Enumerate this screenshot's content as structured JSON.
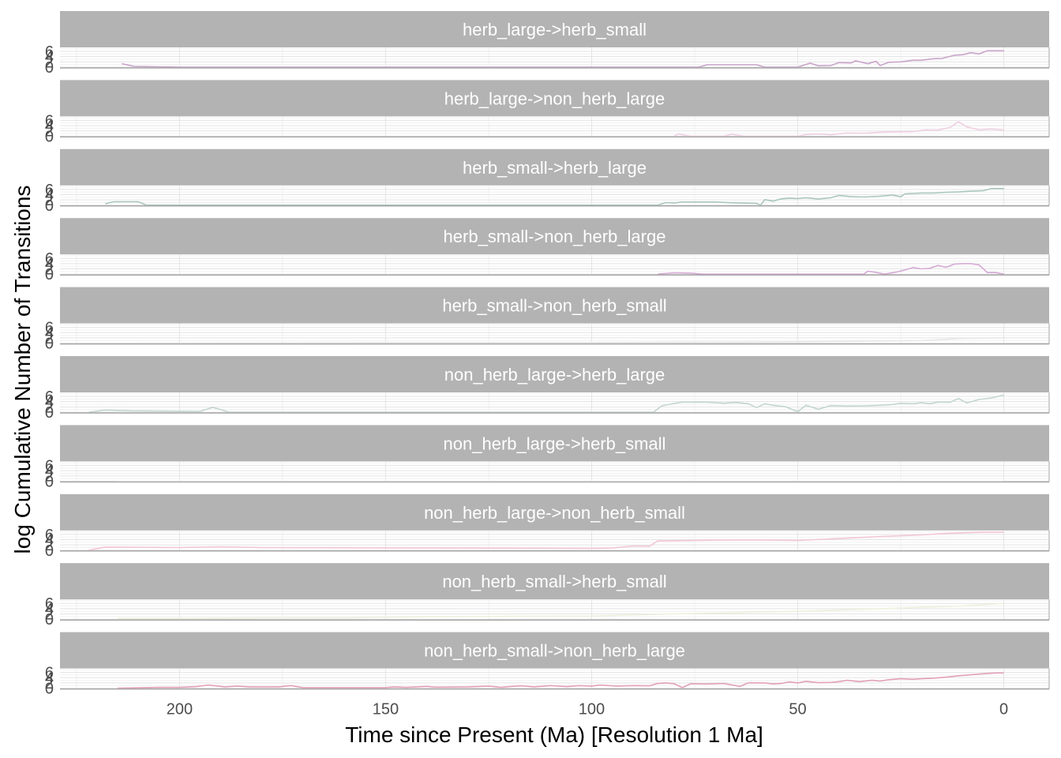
{
  "chart_data": {
    "type": "line",
    "ylabel": "log Cumulative Number of Transitions",
    "xlabel": "Time since Present (Ma) [Resolution 1 Ma]",
    "x_reversed": true,
    "xlim": [
      229,
      -11
    ],
    "x_ticks": [
      200,
      150,
      100,
      50,
      0
    ],
    "x_tick_labels": [
      "200",
      "150",
      "100",
      "50",
      "0"
    ],
    "ylim": [
      -0.3,
      7.5
    ],
    "y_ticks": [
      0,
      2,
      4,
      6
    ],
    "y_tick_labels": [
      "0",
      "2",
      "4",
      "6"
    ],
    "grid": true,
    "legend": "none",
    "panels": [
      {
        "label": "herb_large->herb_small",
        "color": "#c9a3c9",
        "points": [
          [
            214,
            1.3
          ],
          [
            211,
            0.3
          ],
          [
            200,
            0
          ],
          [
            74,
            0
          ],
          [
            72,
            0.9
          ],
          [
            60,
            0.9
          ],
          [
            58,
            0
          ],
          [
            50,
            0
          ],
          [
            49,
            0.5
          ],
          [
            47,
            1.5
          ],
          [
            45,
            0.5
          ],
          [
            42,
            0.6
          ],
          [
            40,
            1.7
          ],
          [
            37,
            1.6
          ],
          [
            36,
            2.4
          ],
          [
            33,
            1.3
          ],
          [
            31,
            2.2
          ],
          [
            30,
            0.6
          ],
          [
            28,
            1.8
          ],
          [
            25,
            2
          ],
          [
            22,
            2.6
          ],
          [
            20,
            2.6
          ],
          [
            17,
            3.2
          ],
          [
            15,
            3.3
          ],
          [
            12,
            4.5
          ],
          [
            10,
            4.7
          ],
          [
            8,
            5.5
          ],
          [
            6,
            5
          ],
          [
            4,
            6.2
          ],
          [
            0,
            6.2
          ]
        ]
      },
      {
        "label": "herb_large->non_herb_large",
        "color": "#f0d0e2",
        "points": [
          [
            80,
            0
          ],
          [
            79,
            0.8
          ],
          [
            76,
            0
          ],
          [
            68,
            0
          ],
          [
            66,
            0.7
          ],
          [
            63,
            0
          ],
          [
            50,
            0
          ],
          [
            48,
            0.6
          ],
          [
            45,
            0.8
          ],
          [
            42,
            0.5
          ],
          [
            38,
            1.2
          ],
          [
            34,
            1.1
          ],
          [
            30,
            1.5
          ],
          [
            26,
            1.6
          ],
          [
            22,
            1.7
          ],
          [
            19,
            2.4
          ],
          [
            16,
            2.3
          ],
          [
            13,
            3.3
          ],
          [
            11,
            5.5
          ],
          [
            9,
            3.5
          ],
          [
            6,
            2.4
          ],
          [
            3,
            2.7
          ],
          [
            0,
            2.3
          ]
        ]
      },
      {
        "label": "herb_small->herb_large",
        "color": "#a8c7bc",
        "points": [
          [
            218,
            0.5
          ],
          [
            216,
            1.3
          ],
          [
            210,
            1.3
          ],
          [
            208,
            0
          ],
          [
            84,
            0
          ],
          [
            82,
            1
          ],
          [
            80,
            0.8
          ],
          [
            78,
            1.2
          ],
          [
            70,
            1.2
          ],
          [
            66,
            0.9
          ],
          [
            64,
            0.8
          ],
          [
            60,
            0.7
          ],
          [
            59,
            0
          ],
          [
            58,
            2.1
          ],
          [
            56,
            1.5
          ],
          [
            54,
            2.4
          ],
          [
            52,
            2.6
          ],
          [
            50,
            2.5
          ],
          [
            48,
            2.8
          ],
          [
            45,
            2.3
          ],
          [
            42,
            2.8
          ],
          [
            40,
            3.7
          ],
          [
            37,
            3.2
          ],
          [
            34,
            3.1
          ],
          [
            30,
            3.4
          ],
          [
            27,
            3.8
          ],
          [
            25,
            3.2
          ],
          [
            24,
            4.3
          ],
          [
            20,
            4.6
          ],
          [
            17,
            4.6
          ],
          [
            14,
            4.9
          ],
          [
            11,
            5
          ],
          [
            8,
            5.3
          ],
          [
            5,
            5.5
          ],
          [
            3,
            6.3
          ],
          [
            0,
            6.3
          ]
        ]
      },
      {
        "label": "herb_small->non_herb_large",
        "color": "#d4a9d4",
        "points": [
          [
            84,
            0
          ],
          [
            80,
            0.5
          ],
          [
            76,
            0.4
          ],
          [
            73,
            0
          ],
          [
            34,
            0
          ],
          [
            33,
            1.1
          ],
          [
            31,
            0.7
          ],
          [
            29,
            0
          ],
          [
            26,
            0.8
          ],
          [
            24,
            1.6
          ],
          [
            22,
            2.5
          ],
          [
            20,
            2
          ],
          [
            18,
            2.2
          ],
          [
            16,
            3.3
          ],
          [
            14,
            2.6
          ],
          [
            12,
            3.8
          ],
          [
            10,
            4
          ],
          [
            8,
            4
          ],
          [
            6,
            3.5
          ],
          [
            4,
            0.6
          ],
          [
            2,
            0.6
          ],
          [
            0,
            0
          ]
        ]
      },
      {
        "label": "herb_small->non_herb_small",
        "color": "#e8e8e8",
        "points": [
          [
            210,
            0
          ],
          [
            150,
            0.2
          ],
          [
            100,
            0.2
          ],
          [
            50,
            0.5
          ],
          [
            20,
            1.0
          ],
          [
            10,
            1.8
          ],
          [
            0,
            2.0
          ]
        ]
      },
      {
        "label": "non_herb_large->herb_large",
        "color": "#c2d6ce",
        "points": [
          [
            222,
            0
          ],
          [
            218,
            0.8
          ],
          [
            212,
            0.5
          ],
          [
            195,
            0.3
          ],
          [
            192,
            1.8
          ],
          [
            190,
            1
          ],
          [
            188,
            0
          ],
          [
            85,
            0
          ],
          [
            83,
            2.4
          ],
          [
            80,
            3.3
          ],
          [
            78,
            3.8
          ],
          [
            76,
            3.8
          ],
          [
            72,
            3.8
          ],
          [
            68,
            3.4
          ],
          [
            65,
            3.7
          ],
          [
            62,
            3.2
          ],
          [
            60,
            1.7
          ],
          [
            58,
            3.2
          ],
          [
            56,
            2.6
          ],
          [
            53,
            2.1
          ],
          [
            50,
            0.2
          ],
          [
            48,
            2.6
          ],
          [
            45,
            1.1
          ],
          [
            42,
            2.5
          ],
          [
            38,
            2.3
          ],
          [
            34,
            2.4
          ],
          [
            30,
            2.6
          ],
          [
            27,
            2.9
          ],
          [
            25,
            3.4
          ],
          [
            22,
            3.2
          ],
          [
            20,
            3.6
          ],
          [
            18,
            3.2
          ],
          [
            16,
            3.8
          ],
          [
            13,
            3.8
          ],
          [
            11,
            5.2
          ],
          [
            9,
            3.5
          ],
          [
            6,
            4.8
          ],
          [
            3,
            5.4
          ],
          [
            0,
            6.5
          ]
        ]
      },
      {
        "label": "non_herb_large->herb_small",
        "color": "#f5f5f5",
        "points": [
          [
            215,
            0
          ],
          [
            100,
            0
          ],
          [
            50,
            0
          ],
          [
            0,
            0
          ]
        ]
      },
      {
        "label": "non_herb_large->non_herb_small",
        "color": "#f2c6d3",
        "points": [
          [
            222,
            0
          ],
          [
            218,
            1.2
          ],
          [
            200,
            1
          ],
          [
            190,
            1.3
          ],
          [
            180,
            1
          ],
          [
            100,
            0.7
          ],
          [
            95,
            0.8
          ],
          [
            90,
            1.6
          ],
          [
            86,
            1.5
          ],
          [
            84,
            3.5
          ],
          [
            80,
            3.6
          ],
          [
            70,
            3.8
          ],
          [
            60,
            3.9
          ],
          [
            50,
            3.7
          ],
          [
            40,
            4.4
          ],
          [
            35,
            4.8
          ],
          [
            30,
            5.2
          ],
          [
            25,
            5.5
          ],
          [
            20,
            5.8
          ],
          [
            15,
            6.3
          ],
          [
            10,
            6.6
          ],
          [
            5,
            6.8
          ],
          [
            0,
            6.8
          ]
        ]
      },
      {
        "label": "non_herb_small->herb_small",
        "color": "#eef0dd",
        "points": [
          [
            215,
            0.3
          ],
          [
            200,
            0.3
          ],
          [
            180,
            0.5
          ],
          [
            160,
            0.5
          ],
          [
            140,
            1
          ],
          [
            100,
            1.2
          ],
          [
            80,
            2
          ],
          [
            50,
            3
          ],
          [
            30,
            4
          ],
          [
            10,
            5
          ],
          [
            0,
            6
          ]
        ]
      },
      {
        "label": "non_herb_small->non_herb_large",
        "color": "#e3a0ba",
        "points": [
          [
            215,
            0
          ],
          [
            205,
            0.3
          ],
          [
            200,
            0.3
          ],
          [
            196,
            0.6
          ],
          [
            193,
            1.2
          ],
          [
            189,
            0.5
          ],
          [
            186,
            0.8
          ],
          [
            183,
            0.5
          ],
          [
            176,
            0.5
          ],
          [
            173,
            1
          ],
          [
            170,
            0.2
          ],
          [
            150,
            0.2
          ],
          [
            148,
            0.5
          ],
          [
            145,
            0.3
          ],
          [
            140,
            0.7
          ],
          [
            138,
            0.4
          ],
          [
            130,
            0.5
          ],
          [
            125,
            0.8
          ],
          [
            122,
            0.3
          ],
          [
            120,
            0.6
          ],
          [
            117,
            0.9
          ],
          [
            114,
            0.5
          ],
          [
            110,
            1
          ],
          [
            106,
            0.6
          ],
          [
            103,
            1
          ],
          [
            100,
            0.8
          ],
          [
            98,
            1.2
          ],
          [
            94,
            0.8
          ],
          [
            90,
            1
          ],
          [
            86,
            0.9
          ],
          [
            84,
            1.8
          ],
          [
            82,
            2
          ],
          [
            80,
            1.7
          ],
          [
            78,
            0.2
          ],
          [
            76,
            1.7
          ],
          [
            72,
            1.6
          ],
          [
            68,
            1.8
          ],
          [
            64,
            0.7
          ],
          [
            62,
            2
          ],
          [
            58,
            2
          ],
          [
            56,
            1.6
          ],
          [
            54,
            1.8
          ],
          [
            52,
            2.4
          ],
          [
            50,
            2
          ],
          [
            48,
            2.6
          ],
          [
            45,
            2.1
          ],
          [
            42,
            2.2
          ],
          [
            40,
            2.5
          ],
          [
            38,
            3
          ],
          [
            35,
            2.5
          ],
          [
            32,
            3
          ],
          [
            30,
            2.7
          ],
          [
            28,
            3.2
          ],
          [
            25,
            3.6
          ],
          [
            22,
            3.4
          ],
          [
            20,
            3.6
          ],
          [
            17,
            3.8
          ],
          [
            14,
            4.2
          ],
          [
            11,
            4.7
          ],
          [
            8,
            5.1
          ],
          [
            5,
            5.5
          ],
          [
            2,
            5.8
          ],
          [
            0,
            5.8
          ]
        ]
      }
    ]
  }
}
